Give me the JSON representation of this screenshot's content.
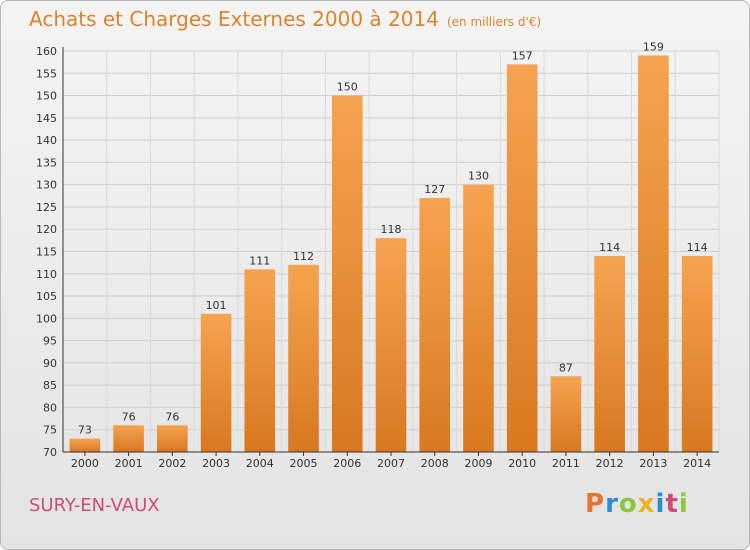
{
  "header": {
    "title": "Achats et Charges Externes 2000 à 2014",
    "unit": "(en milliers d'€)"
  },
  "footer": {
    "commune": "SURY-EN-VAUX",
    "logo_text": "Proxiti",
    "logo_colors": [
      "#e8732a",
      "#2f8bd0",
      "#8cc63e",
      "#e8b52a",
      "#2f8bd0",
      "#d04a7a",
      "#8cc63e"
    ]
  },
  "colors": {
    "bar_light": "#f6a350",
    "bar_dark": "#d87820",
    "title": "#e0822a",
    "commune": "#d04a7a"
  },
  "chart_data": {
    "type": "bar",
    "title": "Achats et Charges Externes 2000 à 2014",
    "categories": [
      "2000",
      "2001",
      "2002",
      "2003",
      "2004",
      "2005",
      "2006",
      "2007",
      "2008",
      "2009",
      "2010",
      "2011",
      "2012",
      "2013",
      "2014"
    ],
    "values": [
      73,
      76,
      76,
      101,
      111,
      112,
      150,
      118,
      127,
      130,
      157,
      87,
      114,
      159,
      114
    ],
    "ylim": [
      70,
      160
    ],
    "yticks": [
      70,
      75,
      80,
      85,
      90,
      95,
      100,
      105,
      110,
      115,
      120,
      125,
      130,
      135,
      140,
      145,
      150,
      155,
      160
    ],
    "grid": true,
    "xlabel": "",
    "ylabel": ""
  }
}
